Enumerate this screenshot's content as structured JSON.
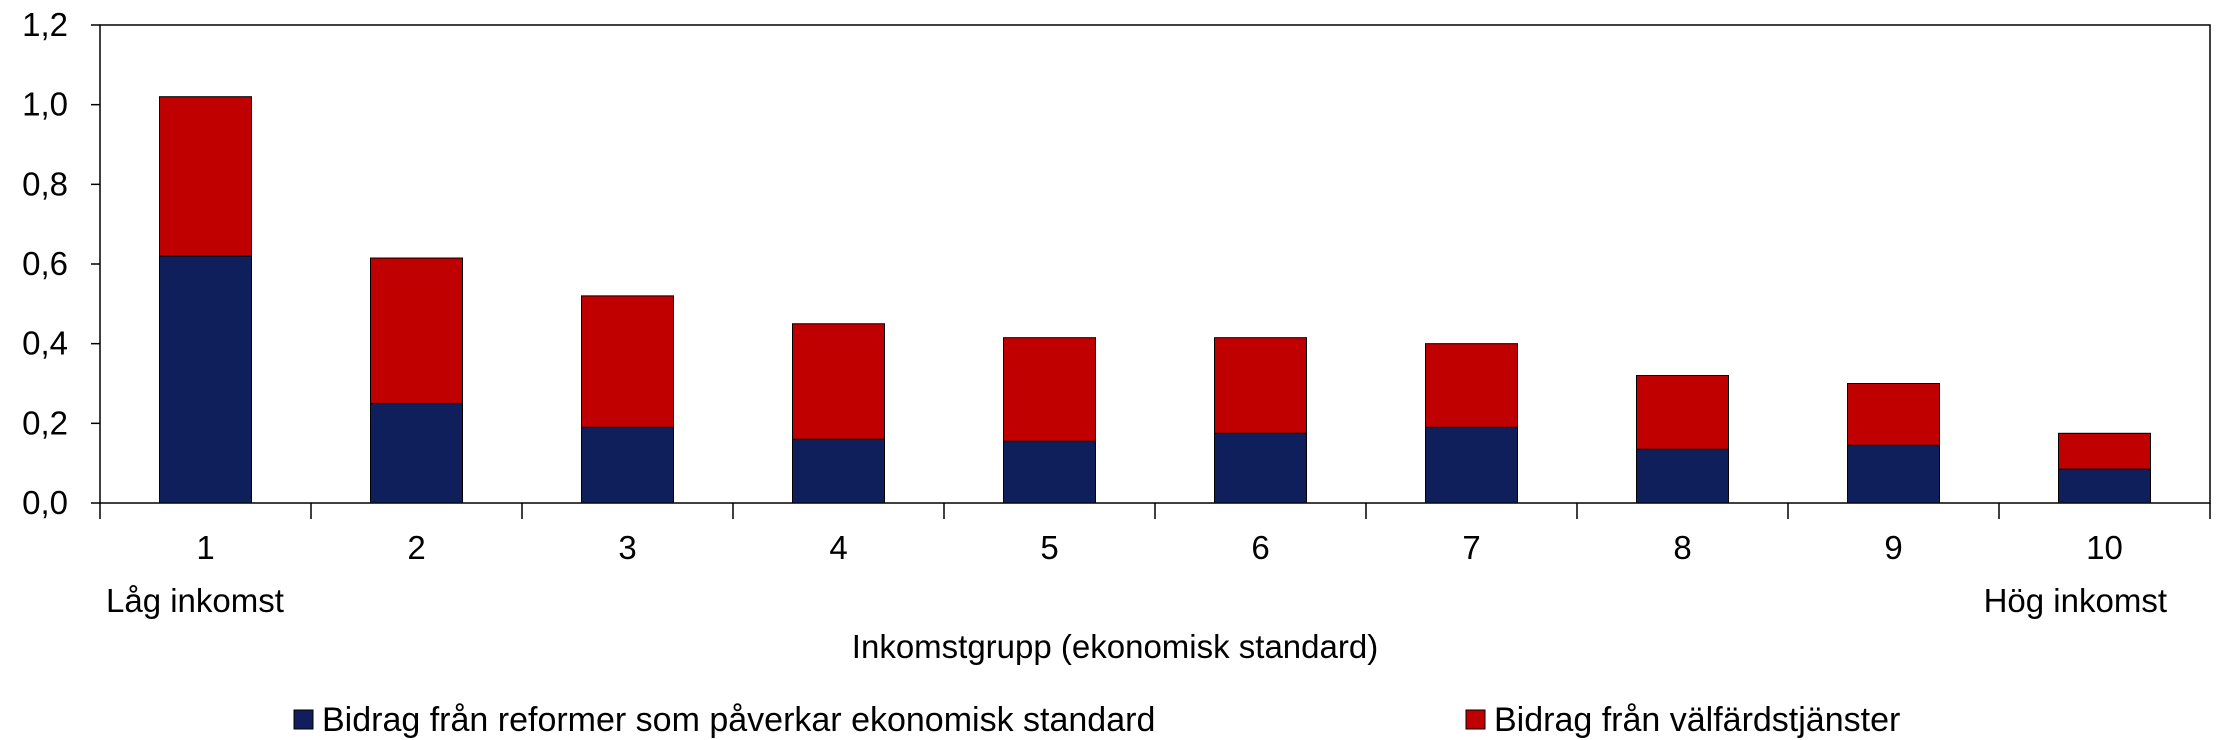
{
  "chart_data": {
    "type": "bar",
    "stacked": true,
    "categories": [
      "1",
      "2",
      "3",
      "4",
      "5",
      "6",
      "7",
      "8",
      "9",
      "10"
    ],
    "series": [
      {
        "name": "Bidrag från reformer som påverkar ekonomisk standard",
        "color": "#0f1f5c",
        "values": [
          0.62,
          0.25,
          0.19,
          0.16,
          0.155,
          0.175,
          0.19,
          0.135,
          0.145,
          0.085
        ]
      },
      {
        "name": "Bidrag från välfärdstjänster",
        "color": "#c00000",
        "values": [
          0.4,
          0.365,
          0.33,
          0.29,
          0.26,
          0.24,
          0.21,
          0.185,
          0.155,
          0.09
        ]
      }
    ],
    "ylim": [
      0,
      1.2
    ],
    "yticks": [
      "0,0",
      "0,2",
      "0,4",
      "0,6",
      "0,8",
      "1,0",
      "1,2"
    ],
    "xlabel": "Inkomstgrupp (ekonomisk standard)",
    "x_low_label": "Låg inkomst",
    "x_high_label": "Hög inkomst",
    "grid": false,
    "legend_position": "bottom"
  }
}
